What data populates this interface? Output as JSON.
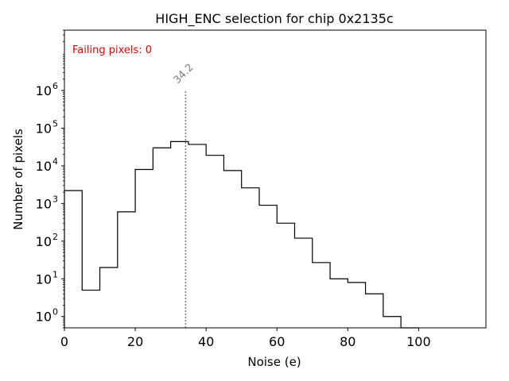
{
  "chart_data": {
    "type": "histogram",
    "title": "HIGH_ENC selection for chip 0x2135c",
    "xlabel": "Noise (e)",
    "ylabel": "Number of pixels",
    "yscale": "log",
    "xlim": [
      0,
      119
    ],
    "ylim": [
      0.5,
      40000000
    ],
    "x_ticks": [
      0,
      20,
      40,
      60,
      80,
      100
    ],
    "y_ticks": [
      {
        "value": 1,
        "base": "10",
        "exp": "0"
      },
      {
        "value": 10,
        "base": "10",
        "exp": "1"
      },
      {
        "value": 100,
        "base": "10",
        "exp": "2"
      },
      {
        "value": 1000,
        "base": "10",
        "exp": "3"
      },
      {
        "value": 10000,
        "base": "10",
        "exp": "4"
      },
      {
        "value": 100000,
        "base": "10",
        "exp": "5"
      },
      {
        "value": 1000000,
        "base": "10",
        "exp": "6"
      }
    ],
    "bin_edges": [
      0,
      5,
      10,
      15,
      20,
      25,
      30,
      35,
      40,
      45,
      50,
      55,
      60,
      65,
      70,
      75,
      80,
      85,
      90,
      95,
      100
    ],
    "counts": [
      2200,
      5,
      20,
      600,
      8000,
      30000,
      44000,
      37000,
      19000,
      7500,
      2600,
      900,
      300,
      120,
      27,
      10,
      8,
      4,
      1,
      0
    ],
    "mean_line": {
      "x": 34.2,
      "label": "34.2",
      "color": "#808080"
    },
    "annotation": {
      "text": "Failing pixels: 0",
      "color": "#e00000"
    },
    "grid": false,
    "line_color": "#000000"
  }
}
